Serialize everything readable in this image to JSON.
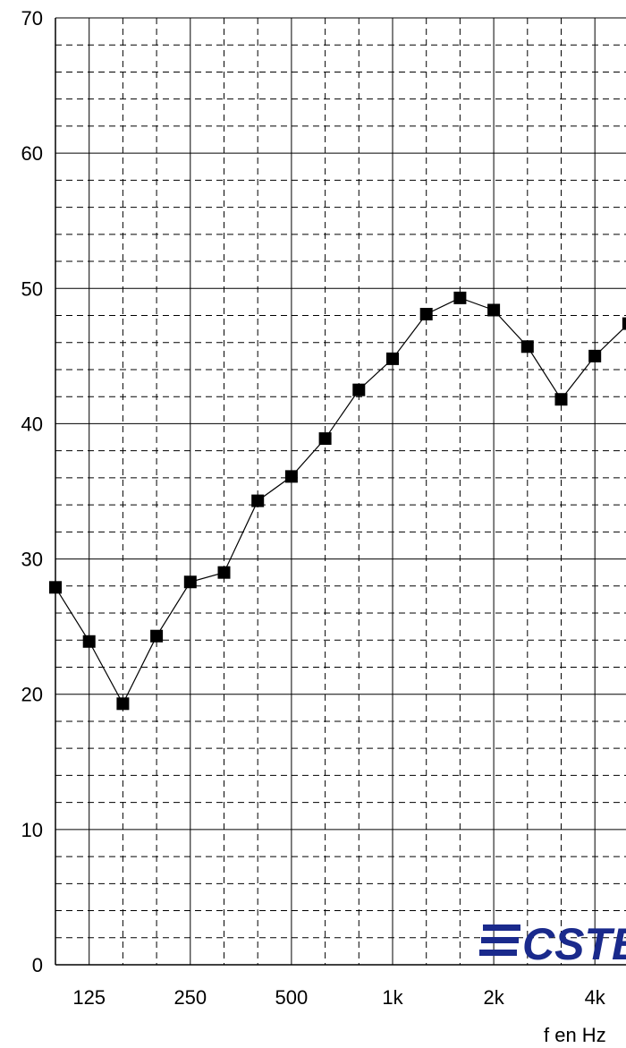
{
  "chart_data": {
    "type": "line",
    "title": "",
    "xlabel": "f en Hz",
    "ylabel": "",
    "ylim": [
      0,
      70
    ],
    "yticks": [
      "0",
      "10",
      "20",
      "30",
      "40",
      "50",
      "60",
      "70"
    ],
    "xticks": [
      "125",
      "250",
      "500",
      "1k",
      "2k",
      "4k"
    ],
    "grid": true,
    "marker": "square",
    "x": [
      "100",
      "125",
      "160",
      "200",
      "250",
      "315",
      "400",
      "500",
      "630",
      "800",
      "1k",
      "1.25k",
      "1.6k",
      "2k",
      "2.5k",
      "3.15k",
      "4k",
      "5k"
    ],
    "series": [
      {
        "values": [
          27.9,
          23.9,
          19.3,
          24.3,
          28.3,
          29.0,
          34.3,
          36.1,
          38.9,
          42.5,
          44.8,
          48.1,
          49.3,
          48.4,
          45.7,
          41.8,
          45.0,
          47.4
        ]
      }
    ]
  },
  "logo": {
    "text": "CSTB"
  },
  "colors": {
    "line": "#000000",
    "grid": "#000000",
    "logo": "#1a2a8c"
  }
}
